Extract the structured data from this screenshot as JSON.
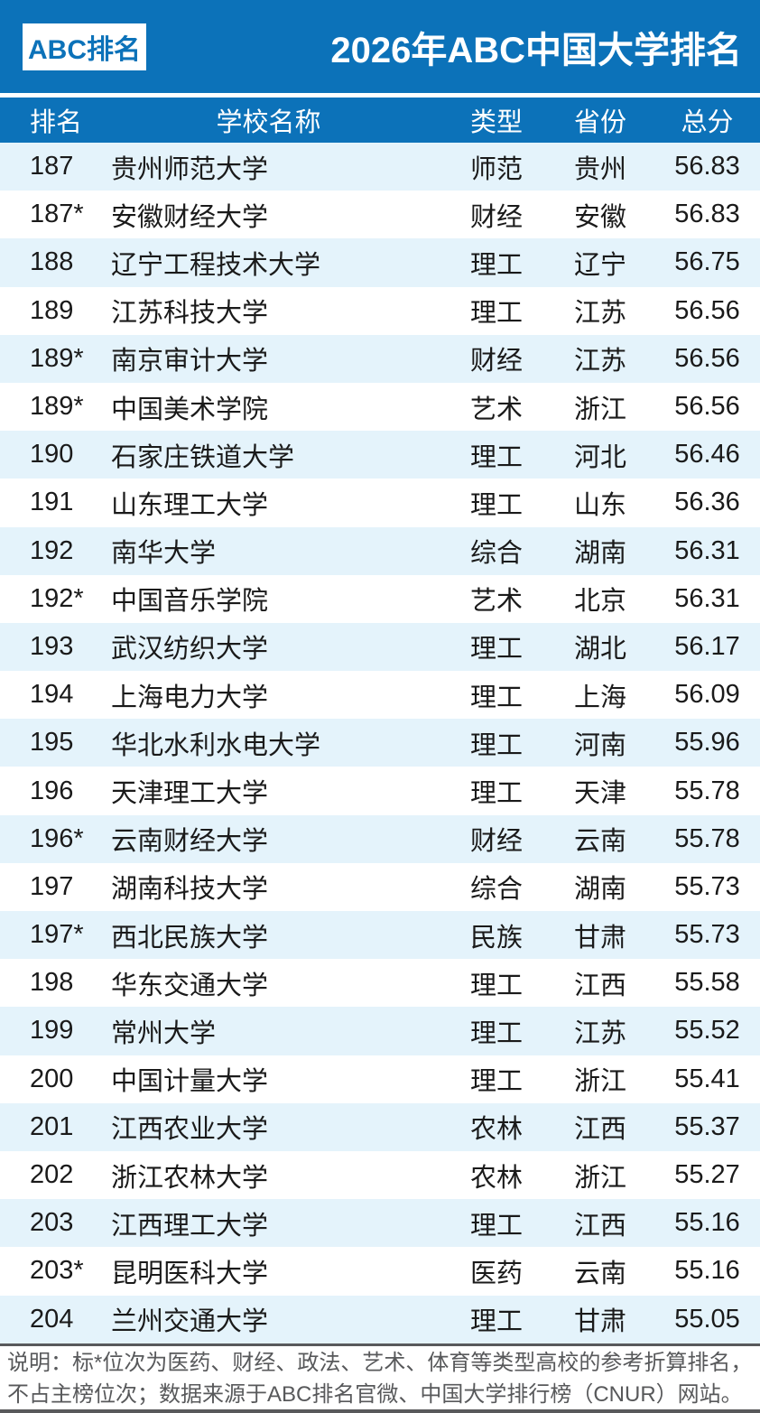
{
  "header": {
    "logo_text": "ABC排名",
    "title": "2026年ABC中国大学排名"
  },
  "table": {
    "columns": {
      "rank": "排名",
      "name": "学校名称",
      "type": "类型",
      "province": "省份",
      "score": "总分"
    }
  },
  "chart_data": {
    "type": "table",
    "title": "2026年ABC中国大学排名",
    "columns": [
      "排名",
      "学校名称",
      "类型",
      "省份",
      "总分"
    ],
    "rows": [
      {
        "rank": "187",
        "name": "贵州师范大学",
        "type": "师范",
        "province": "贵州",
        "score": "56.83"
      },
      {
        "rank": "187*",
        "name": "安徽财经大学",
        "type": "财经",
        "province": "安徽",
        "score": "56.83"
      },
      {
        "rank": "188",
        "name": "辽宁工程技术大学",
        "type": "理工",
        "province": "辽宁",
        "score": "56.75"
      },
      {
        "rank": "189",
        "name": "江苏科技大学",
        "type": "理工",
        "province": "江苏",
        "score": "56.56"
      },
      {
        "rank": "189*",
        "name": "南京审计大学",
        "type": "财经",
        "province": "江苏",
        "score": "56.56"
      },
      {
        "rank": "189*",
        "name": "中国美术学院",
        "type": "艺术",
        "province": "浙江",
        "score": "56.56"
      },
      {
        "rank": "190",
        "name": "石家庄铁道大学",
        "type": "理工",
        "province": "河北",
        "score": "56.46"
      },
      {
        "rank": "191",
        "name": "山东理工大学",
        "type": "理工",
        "province": "山东",
        "score": "56.36"
      },
      {
        "rank": "192",
        "name": "南华大学",
        "type": "综合",
        "province": "湖南",
        "score": "56.31"
      },
      {
        "rank": "192*",
        "name": "中国音乐学院",
        "type": "艺术",
        "province": "北京",
        "score": "56.31"
      },
      {
        "rank": "193",
        "name": "武汉纺织大学",
        "type": "理工",
        "province": "湖北",
        "score": "56.17"
      },
      {
        "rank": "194",
        "name": "上海电力大学",
        "type": "理工",
        "province": "上海",
        "score": "56.09"
      },
      {
        "rank": "195",
        "name": "华北水利水电大学",
        "type": "理工",
        "province": "河南",
        "score": "55.96"
      },
      {
        "rank": "196",
        "name": "天津理工大学",
        "type": "理工",
        "province": "天津",
        "score": "55.78"
      },
      {
        "rank": "196*",
        "name": "云南财经大学",
        "type": "财经",
        "province": "云南",
        "score": "55.78"
      },
      {
        "rank": "197",
        "name": "湖南科技大学",
        "type": "综合",
        "province": "湖南",
        "score": "55.73"
      },
      {
        "rank": "197*",
        "name": "西北民族大学",
        "type": "民族",
        "province": "甘肃",
        "score": "55.73"
      },
      {
        "rank": "198",
        "name": "华东交通大学",
        "type": "理工",
        "province": "江西",
        "score": "55.58"
      },
      {
        "rank": "199",
        "name": "常州大学",
        "type": "理工",
        "province": "江苏",
        "score": "55.52"
      },
      {
        "rank": "200",
        "name": "中国计量大学",
        "type": "理工",
        "province": "浙江",
        "score": "55.41"
      },
      {
        "rank": "201",
        "name": "江西农业大学",
        "type": "农林",
        "province": "江西",
        "score": "55.37"
      },
      {
        "rank": "202",
        "name": "浙江农林大学",
        "type": "农林",
        "province": "浙江",
        "score": "55.27"
      },
      {
        "rank": "203",
        "name": "江西理工大学",
        "type": "理工",
        "province": "江西",
        "score": "55.16"
      },
      {
        "rank": "203*",
        "name": "昆明医科大学",
        "type": "医药",
        "province": "云南",
        "score": "55.16"
      },
      {
        "rank": "204",
        "name": "兰州交通大学",
        "type": "理工",
        "province": "甘肃",
        "score": "55.05"
      }
    ]
  },
  "footer": {
    "line1": "说明：标*位次为医药、财经、政法、艺术、体育等类型高校的参考折算排名，",
    "line2": "不占主榜位次；数据来源于ABC排名官微、中国大学排行榜（CNUR）网站。"
  },
  "colors": {
    "primary_blue": "#0c72b9",
    "row_alt_blue": "#e4f3fb",
    "footer_gray": "#58595b",
    "text_black": "#1a1a1a",
    "white": "#ffffff"
  }
}
